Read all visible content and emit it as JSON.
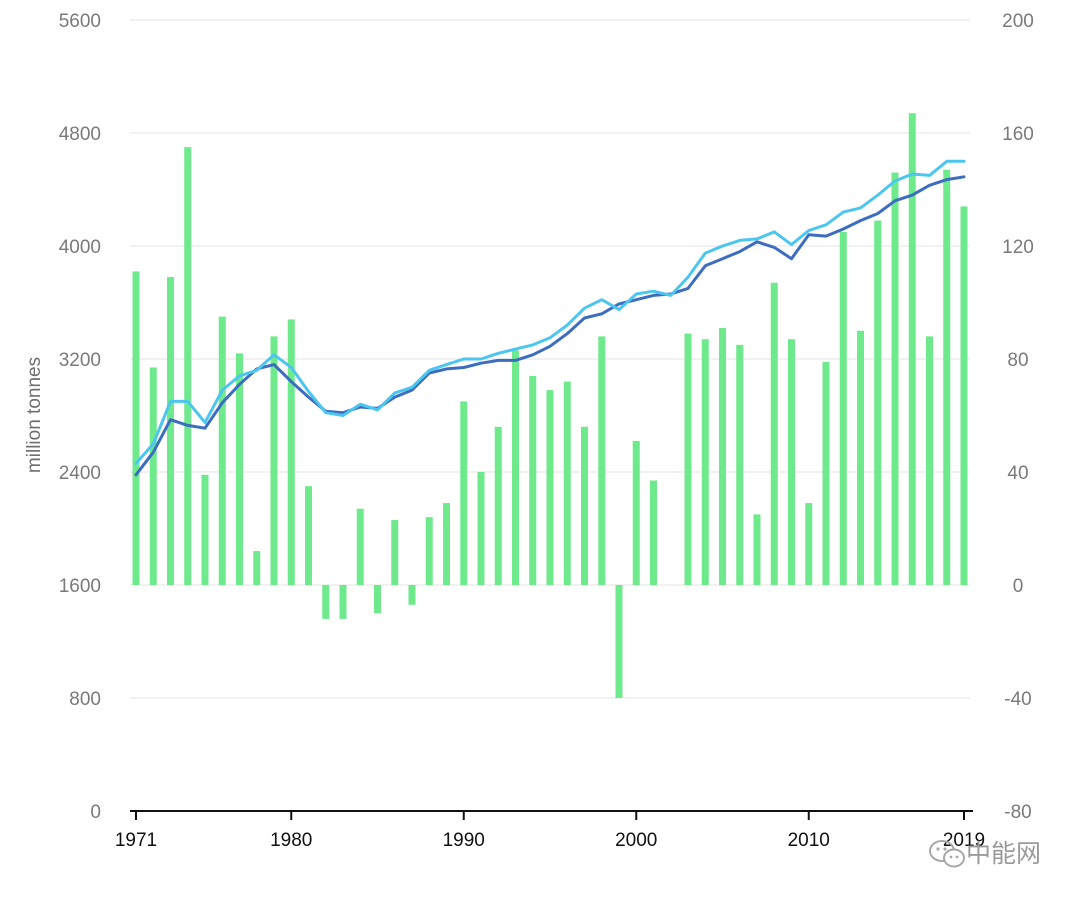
{
  "chart_data": {
    "type": "bar+line",
    "title": "",
    "ylabel": "million tonnes",
    "xlabel": "",
    "x_ticks": [
      "1971",
      "1980",
      "1990",
      "2000",
      "2010",
      "2019"
    ],
    "y_left": {
      "min": 0,
      "max": 5600,
      "ticks": [
        "0",
        "800",
        "1600",
        "2400",
        "3200",
        "4000",
        "4800",
        "5600"
      ]
    },
    "y_right": {
      "min": -80,
      "max": 200,
      "ticks": [
        "-80",
        "-40",
        "0",
        "40",
        "80",
        "120",
        "160",
        "200"
      ]
    },
    "grid": "horizontal",
    "years": [
      1971,
      1972,
      1973,
      1974,
      1975,
      1976,
      1977,
      1978,
      1979,
      1980,
      1981,
      1982,
      1983,
      1984,
      1985,
      1986,
      1987,
      1988,
      1989,
      1990,
      1991,
      1992,
      1993,
      1994,
      1995,
      1996,
      1997,
      1998,
      1999,
      2000,
      2001,
      2002,
      2003,
      2004,
      2005,
      2006,
      2007,
      2008,
      2009,
      2010,
      2011,
      2012,
      2013,
      2014,
      2015,
      2016,
      2017,
      2018,
      2019
    ],
    "series": [
      {
        "type": "bar",
        "axis": "right",
        "color": "#6ee98b",
        "values": [
          111,
          77,
          109,
          155,
          39,
          95,
          82,
          12,
          88,
          94,
          35,
          -12,
          -12,
          27,
          -10,
          23,
          -7,
          24,
          29,
          65,
          40,
          56,
          83,
          74,
          69,
          72,
          56,
          88,
          -40,
          51,
          37,
          0,
          89,
          87,
          91,
          85,
          25,
          107,
          87,
          29,
          79,
          125,
          90,
          129,
          146,
          167,
          88,
          147,
          134
        ]
      },
      {
        "type": "line",
        "axis": "left",
        "color": "#3d6dbf",
        "values": [
          2380,
          2540,
          2770,
          2730,
          2710,
          2890,
          3020,
          3130,
          3160,
          3040,
          2930,
          2830,
          2820,
          2860,
          2850,
          2930,
          2980,
          3100,
          3130,
          3140,
          3170,
          3190,
          3190,
          3230,
          3290,
          3380,
          3490,
          3520,
          3590,
          3620,
          3650,
          3660,
          3700,
          3860,
          3910,
          3960,
          4030,
          3990,
          3910,
          4080,
          4070,
          4120,
          4180,
          4230,
          4320,
          4360,
          4430,
          4470,
          4490
        ]
      },
      {
        "type": "line",
        "axis": "left",
        "color": "#4cc6ee",
        "values": [
          2460,
          2600,
          2900,
          2900,
          2750,
          2980,
          3080,
          3120,
          3230,
          3140,
          2970,
          2820,
          2800,
          2880,
          2840,
          2960,
          3000,
          3120,
          3160,
          3200,
          3200,
          3240,
          3270,
          3300,
          3350,
          3440,
          3560,
          3620,
          3550,
          3660,
          3680,
          3650,
          3780,
          3950,
          4000,
          4040,
          4050,
          4100,
          4010,
          4110,
          4150,
          4240,
          4270,
          4360,
          4460,
          4510,
          4500,
          4600,
          4600
        ]
      }
    ]
  },
  "watermark": {
    "text": "中能网",
    "icon": "wechat-icon"
  }
}
